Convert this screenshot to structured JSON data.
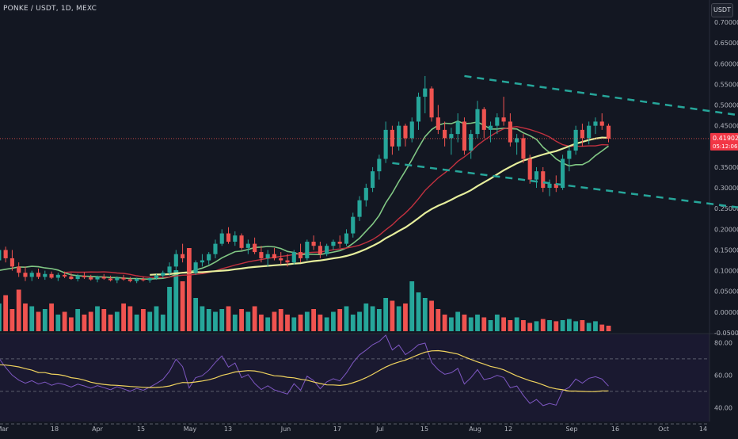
{
  "header": {
    "symbol": "PONKE / USDT, 1D, MEXC",
    "currency_button": "USDT"
  },
  "price_label": {
    "value": "0.41902",
    "countdown": "05:12:06",
    "color": "#f23645"
  },
  "colors": {
    "background": "#131722",
    "up": "#26a69a",
    "down": "#ef5350",
    "ma_fast": "#81c784",
    "ma_mid": "#c2313f",
    "ma_slow": "#e6ee9c",
    "channel": "#26a69a",
    "rsi_line": "#7e57c2",
    "rsi_ma": "#f0d35e"
  },
  "chart_data": [
    {
      "type": "candlestick",
      "y_ticks": [
        "0.70000",
        "0.65000",
        "0.60000",
        "0.55000",
        "0.50000",
        "0.45000",
        "0.40000",
        "0.35000",
        "0.30000",
        "0.25000",
        "0.20000",
        "0.15000",
        "0.10000",
        "0.05000",
        "0.00000",
        "-0.05000"
      ],
      "ylim": [
        -0.05,
        0.7
      ],
      "x_tick_labels": [
        "Mar",
        "18",
        "Apr",
        "15",
        "May",
        "13",
        "Jun",
        "17",
        "Jul",
        "15",
        "Aug",
        "12",
        "Sep",
        "16",
        "Oct",
        "14"
      ],
      "start_date": "2024-03-07",
      "ohlc": [
        [
          0.06,
          0.075,
          0.04,
          0.055
        ],
        [
          0.055,
          0.12,
          0.05,
          0.1
        ],
        [
          0.1,
          0.13,
          0.08,
          0.085
        ],
        [
          0.085,
          0.12,
          0.06,
          0.065
        ],
        [
          0.065,
          0.1,
          0.05,
          0.09
        ],
        [
          0.09,
          0.11,
          0.07,
          0.075
        ],
        [
          0.075,
          0.105,
          0.06,
          0.095
        ],
        [
          0.095,
          0.13,
          0.085,
          0.12
        ],
        [
          0.12,
          0.135,
          0.095,
          0.1
        ],
        [
          0.1,
          0.14,
          0.09,
          0.125
        ],
        [
          0.125,
          0.16,
          0.11,
          0.15
        ],
        [
          0.15,
          0.158,
          0.12,
          0.13
        ],
        [
          0.13,
          0.15,
          0.1,
          0.11
        ],
        [
          0.11,
          0.12,
          0.085,
          0.095
        ],
        [
          0.095,
          0.11,
          0.075,
          0.085
        ],
        [
          0.085,
          0.1,
          0.075,
          0.095
        ],
        [
          0.095,
          0.105,
          0.08,
          0.085
        ],
        [
          0.085,
          0.1,
          0.078,
          0.092
        ],
        [
          0.092,
          0.098,
          0.08,
          0.083
        ],
        [
          0.083,
          0.095,
          0.075,
          0.09
        ],
        [
          0.09,
          0.098,
          0.082,
          0.086
        ],
        [
          0.086,
          0.094,
          0.078,
          0.08
        ],
        [
          0.08,
          0.092,
          0.074,
          0.088
        ],
        [
          0.088,
          0.096,
          0.08,
          0.084
        ],
        [
          0.084,
          0.09,
          0.076,
          0.079
        ],
        [
          0.079,
          0.088,
          0.072,
          0.085
        ],
        [
          0.085,
          0.092,
          0.078,
          0.081
        ],
        [
          0.081,
          0.088,
          0.074,
          0.077
        ],
        [
          0.077,
          0.086,
          0.07,
          0.083
        ],
        [
          0.083,
          0.09,
          0.076,
          0.079
        ],
        [
          0.079,
          0.085,
          0.072,
          0.075
        ],
        [
          0.075,
          0.083,
          0.07,
          0.08
        ],
        [
          0.08,
          0.086,
          0.074,
          0.077
        ],
        [
          0.077,
          0.084,
          0.071,
          0.082
        ],
        [
          0.082,
          0.092,
          0.078,
          0.088
        ],
        [
          0.088,
          0.1,
          0.082,
          0.095
        ],
        [
          0.095,
          0.12,
          0.088,
          0.11
        ],
        [
          0.11,
          0.15,
          0.1,
          0.14
        ],
        [
          0.14,
          0.165,
          0.12,
          0.13
        ],
        [
          0.13,
          0.145,
          0.08,
          0.095
        ],
        [
          0.095,
          0.125,
          0.09,
          0.12
        ],
        [
          0.12,
          0.14,
          0.11,
          0.125
        ],
        [
          0.125,
          0.145,
          0.115,
          0.14
        ],
        [
          0.14,
          0.175,
          0.13,
          0.165
        ],
        [
          0.165,
          0.2,
          0.16,
          0.19
        ],
        [
          0.19,
          0.205,
          0.165,
          0.17
        ],
        [
          0.17,
          0.195,
          0.16,
          0.185
        ],
        [
          0.185,
          0.19,
          0.15,
          0.155
        ],
        [
          0.155,
          0.175,
          0.14,
          0.165
        ],
        [
          0.165,
          0.18,
          0.14,
          0.145
        ],
        [
          0.145,
          0.16,
          0.12,
          0.13
        ],
        [
          0.13,
          0.15,
          0.11,
          0.14
        ],
        [
          0.14,
          0.155,
          0.125,
          0.13
        ],
        [
          0.13,
          0.145,
          0.115,
          0.125
        ],
        [
          0.125,
          0.14,
          0.11,
          0.12
        ],
        [
          0.12,
          0.15,
          0.115,
          0.145
        ],
        [
          0.145,
          0.165,
          0.12,
          0.13
        ],
        [
          0.13,
          0.175,
          0.125,
          0.17
        ],
        [
          0.17,
          0.185,
          0.15,
          0.16
        ],
        [
          0.16,
          0.17,
          0.13,
          0.14
        ],
        [
          0.14,
          0.165,
          0.135,
          0.16
        ],
        [
          0.16,
          0.175,
          0.15,
          0.17
        ],
        [
          0.17,
          0.185,
          0.155,
          0.165
        ],
        [
          0.165,
          0.2,
          0.16,
          0.19
        ],
        [
          0.19,
          0.24,
          0.18,
          0.23
        ],
        [
          0.23,
          0.28,
          0.22,
          0.27
        ],
        [
          0.27,
          0.31,
          0.255,
          0.3
        ],
        [
          0.3,
          0.35,
          0.29,
          0.34
        ],
        [
          0.34,
          0.38,
          0.32,
          0.37
        ],
        [
          0.37,
          0.46,
          0.36,
          0.44
        ],
        [
          0.44,
          0.45,
          0.38,
          0.4
        ],
        [
          0.4,
          0.46,
          0.39,
          0.45
        ],
        [
          0.45,
          0.455,
          0.4,
          0.42
        ],
        [
          0.42,
          0.47,
          0.41,
          0.46
        ],
        [
          0.46,
          0.53,
          0.44,
          0.52
        ],
        [
          0.52,
          0.57,
          0.48,
          0.54
        ],
        [
          0.54,
          0.545,
          0.46,
          0.47
        ],
        [
          0.47,
          0.5,
          0.43,
          0.44
        ],
        [
          0.44,
          0.46,
          0.4,
          0.42
        ],
        [
          0.42,
          0.445,
          0.38,
          0.43
        ],
        [
          0.43,
          0.48,
          0.41,
          0.46
        ],
        [
          0.46,
          0.47,
          0.38,
          0.39
        ],
        [
          0.39,
          0.44,
          0.37,
          0.43
        ],
        [
          0.43,
          0.51,
          0.42,
          0.49
        ],
        [
          0.49,
          0.495,
          0.42,
          0.44
        ],
        [
          0.44,
          0.46,
          0.41,
          0.45
        ],
        [
          0.45,
          0.48,
          0.43,
          0.47
        ],
        [
          0.47,
          0.52,
          0.45,
          0.46
        ],
        [
          0.46,
          0.48,
          0.4,
          0.41
        ],
        [
          0.41,
          0.43,
          0.38,
          0.42
        ],
        [
          0.42,
          0.43,
          0.36,
          0.37
        ],
        [
          0.37,
          0.38,
          0.31,
          0.32
        ],
        [
          0.32,
          0.35,
          0.3,
          0.34
        ],
        [
          0.34,
          0.35,
          0.29,
          0.3
        ],
        [
          0.3,
          0.32,
          0.28,
          0.31
        ],
        [
          0.31,
          0.33,
          0.29,
          0.3
        ],
        [
          0.3,
          0.38,
          0.295,
          0.37
        ],
        [
          0.37,
          0.4,
          0.34,
          0.39
        ],
        [
          0.39,
          0.45,
          0.38,
          0.44
        ],
        [
          0.44,
          0.455,
          0.4,
          0.42
        ],
        [
          0.42,
          0.46,
          0.405,
          0.45
        ],
        [
          0.45,
          0.47,
          0.43,
          0.46
        ],
        [
          0.46,
          0.48,
          0.44,
          0.45
        ],
        [
          0.45,
          0.455,
          0.41,
          0.419
        ]
      ],
      "volume": [
        110,
        95,
        80,
        70,
        60,
        45,
        80,
        100,
        70,
        55,
        50,
        65,
        40,
        75,
        50,
        45,
        35,
        40,
        50,
        30,
        35,
        25,
        40,
        30,
        35,
        45,
        40,
        30,
        35,
        50,
        45,
        30,
        40,
        35,
        45,
        30,
        80,
        110,
        90,
        150,
        60,
        45,
        40,
        35,
        40,
        45,
        30,
        40,
        35,
        45,
        30,
        25,
        35,
        40,
        30,
        25,
        30,
        35,
        40,
        30,
        25,
        35,
        40,
        45,
        30,
        35,
        50,
        45,
        40,
        60,
        55,
        45,
        50,
        90,
        70,
        60,
        55,
        40,
        30,
        25,
        35,
        30,
        25,
        30,
        25,
        20,
        30,
        25,
        20,
        25,
        20,
        15,
        18,
        22,
        20,
        18,
        20,
        22,
        18,
        20,
        15,
        18,
        12,
        10
      ],
      "channel_upper": [
        [
          "2024-05-27",
          0.57
        ],
        [
          "2024-07-28",
          0.43
        ]
      ],
      "channel_lower": [
        [
          "2024-05-16",
          0.36
        ],
        [
          "2024-07-24",
          0.22
        ]
      ]
    },
    {
      "type": "line",
      "y_ticks": [
        "80.00",
        "60.00",
        "40.00"
      ],
      "ylim": [
        30,
        85
      ],
      "levels": [
        70,
        50,
        30
      ],
      "rsi_length": 14,
      "rsi_ma_length": 14
    }
  ]
}
